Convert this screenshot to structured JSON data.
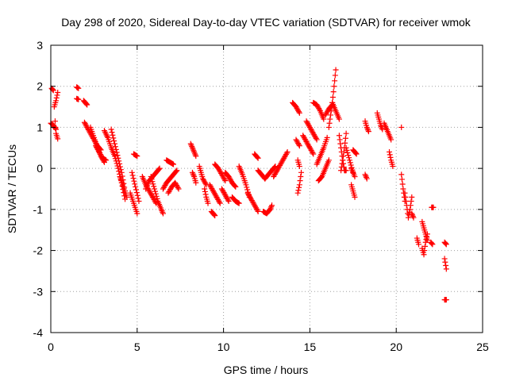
{
  "chart_data": {
    "type": "scatter",
    "title": "Day 298 of 2020, Sidereal Day-to-day VTEC variation (SDTVAR) for receiver wmok",
    "xlabel": "GPS time / hours",
    "ylabel": "SDTVAR / TECUs",
    "xlim": [
      0,
      25
    ],
    "ylim": [
      -4,
      3
    ],
    "xticks": [
      "0",
      "5",
      "10",
      "15",
      "20",
      "25"
    ],
    "yticks": [
      "-4",
      "-3",
      "-2",
      "-1",
      "0",
      "1",
      "2",
      "3"
    ],
    "grid": true,
    "marker": "+",
    "marker_color": "#ff0000",
    "frame_color": "#000000",
    "grid_color": "#a0a0a0",
    "series": [
      {
        "name": "wmok",
        "tracks": [
          {
            "x": [
              0.0,
              0.15,
              0.3
            ],
            "y": [
              1.1,
              1.05,
              0.95
            ]
          },
          {
            "x": [
              0.05,
              0.15
            ],
            "y": [
              1.95,
              1.9
            ]
          },
          {
            "x": [
              0.2,
              0.3,
              0.4
            ],
            "y": [
              1.5,
              1.65,
              1.85
            ]
          },
          {
            "x": [
              0.25,
              0.3,
              0.4
            ],
            "y": [
              1.15,
              0.85,
              0.72
            ]
          },
          {
            "x": [
              1.5,
              1.6
            ],
            "y": [
              1.98,
              1.95
            ]
          },
          {
            "x": [
              1.5,
              1.6
            ],
            "y": [
              1.7,
              1.68
            ]
          },
          {
            "x": [
              1.9,
              2.0,
              2.1
            ],
            "y": [
              1.65,
              1.6,
              1.55
            ]
          },
          {
            "x": [
              1.95,
              2.1,
              2.3,
              2.5,
              2.7,
              2.9
            ],
            "y": [
              1.12,
              1.0,
              0.85,
              0.7,
              0.55,
              0.45
            ]
          },
          {
            "x": [
              2.3,
              2.5,
              2.7,
              2.9,
              3.1
            ],
            "y": [
              1.0,
              0.75,
              0.5,
              0.3,
              0.15
            ]
          },
          {
            "x": [
              2.6,
              2.8,
              3.0,
              3.2
            ],
            "y": [
              0.55,
              0.4,
              0.25,
              0.2
            ]
          },
          {
            "x": [
              3.1,
              3.3,
              3.5,
              3.7,
              3.9,
              4.1,
              4.3
            ],
            "y": [
              0.92,
              0.75,
              0.5,
              0.3,
              0.0,
              -0.35,
              -0.75
            ]
          },
          {
            "x": [
              3.5,
              3.7,
              3.9,
              4.1,
              4.3
            ],
            "y": [
              0.95,
              0.6,
              0.25,
              -0.1,
              -0.55
            ]
          },
          {
            "x": [
              4.0,
              4.2,
              4.4
            ],
            "y": [
              -0.2,
              -0.45,
              -0.7
            ]
          },
          {
            "x": [
              4.6,
              4.8,
              5.0
            ],
            "y": [
              -0.6,
              -0.85,
              -1.1
            ]
          },
          {
            "x": [
              4.7,
              4.9,
              5.1
            ],
            "y": [
              -0.1,
              -0.45,
              -0.8
            ]
          },
          {
            "x": [
              4.8,
              5.0
            ],
            "y": [
              0.35,
              0.3
            ]
          },
          {
            "x": [
              5.3,
              5.5,
              5.7,
              5.9,
              6.1
            ],
            "y": [
              -0.2,
              -0.4,
              -0.55,
              -0.7,
              -0.85
            ]
          },
          {
            "x": [
              5.5,
              5.7,
              5.9,
              6.1,
              6.3
            ],
            "y": [
              -0.5,
              -0.3,
              -0.2,
              -0.1,
              0.0
            ]
          },
          {
            "x": [
              5.8,
              6.0,
              6.2,
              6.4,
              6.5
            ],
            "y": [
              -0.2,
              -0.5,
              -0.8,
              -1.0,
              -1.1
            ]
          },
          {
            "x": [
              6.5,
              6.7,
              6.9,
              7.1,
              7.3
            ],
            "y": [
              -0.5,
              -0.35,
              -0.25,
              -0.15,
              -0.05
            ]
          },
          {
            "x": [
              6.7,
              6.9,
              7.1
            ],
            "y": [
              0.2,
              0.15,
              0.1
            ]
          },
          {
            "x": [
              6.8,
              7.0,
              7.2,
              7.4
            ],
            "y": [
              -0.6,
              -0.45,
              -0.35,
              -0.5
            ]
          },
          {
            "x": [
              8.1,
              8.2,
              8.3,
              8.4
            ],
            "y": [
              0.6,
              0.5,
              0.4,
              0.3
            ]
          },
          {
            "x": [
              8.2,
              8.3,
              8.4
            ],
            "y": [
              -0.1,
              -0.2,
              -0.35
            ]
          },
          {
            "x": [
              8.6,
              8.7,
              8.8,
              9.0
            ],
            "y": [
              0.05,
              -0.1,
              -0.25,
              -0.4
            ]
          },
          {
            "x": [
              8.9,
              9.0,
              9.1
            ],
            "y": [
              -0.5,
              -0.7,
              -0.85
            ]
          },
          {
            "x": [
              9.3,
              9.4,
              9.5
            ],
            "y": [
              -1.05,
              -1.1,
              -1.15
            ]
          },
          {
            "x": [
              9.2,
              9.4,
              9.6,
              9.8
            ],
            "y": [
              -0.4,
              -0.55,
              -0.7,
              -0.85
            ]
          },
          {
            "x": [
              9.5,
              9.7,
              9.9,
              10.1
            ],
            "y": [
              0.1,
              0.0,
              -0.15,
              -0.3
            ]
          },
          {
            "x": [
              9.9,
              10.1,
              10.3
            ],
            "y": [
              -0.5,
              -0.65,
              -0.8
            ]
          },
          {
            "x": [
              10.1,
              10.3,
              10.5,
              10.7
            ],
            "y": [
              -0.1,
              -0.2,
              -0.35,
              -0.45
            ]
          },
          {
            "x": [
              10.5,
              10.7,
              10.9
            ],
            "y": [
              -0.7,
              -0.8,
              -0.85
            ]
          },
          {
            "x": [
              10.9,
              11.1,
              11.3,
              11.5
            ],
            "y": [
              0.05,
              -0.15,
              -0.4,
              -0.7
            ]
          },
          {
            "x": [
              11.4,
              11.6,
              11.8,
              12.0
            ],
            "y": [
              -0.6,
              -0.75,
              -0.9,
              -1.05
            ]
          },
          {
            "x": [
              11.8,
              12.0
            ],
            "y": [
              0.35,
              0.25
            ]
          },
          {
            "x": [
              12.0,
              12.2,
              12.4
            ],
            "y": [
              -0.05,
              -0.15,
              -0.25
            ]
          },
          {
            "x": [
              12.3,
              12.5,
              12.7,
              12.8
            ],
            "y": [
              -1.05,
              -1.1,
              -1.0,
              -0.9
            ]
          },
          {
            "x": [
              12.4,
              12.6,
              12.8,
              13.0
            ],
            "y": [
              -0.25,
              -0.15,
              -0.05,
              0.05
            ]
          },
          {
            "x": [
              12.9,
              13.1,
              13.3,
              13.5,
              13.7
            ],
            "y": [
              -0.2,
              -0.05,
              0.1,
              0.25,
              0.4
            ]
          },
          {
            "x": [
              14.0,
              14.2,
              14.4
            ],
            "y": [
              1.6,
              1.5,
              1.35
            ]
          },
          {
            "x": [
              14.2,
              14.4
            ],
            "y": [
              0.7,
              0.55
            ]
          },
          {
            "x": [
              14.3,
              14.4,
              14.5
            ],
            "y": [
              -0.6,
              -0.4,
              -0.1
            ]
          },
          {
            "x": [
              14.3,
              14.4
            ],
            "y": [
              0.2,
              0.05
            ]
          },
          {
            "x": [
              14.6,
              14.8,
              15.0,
              15.2
            ],
            "y": [
              0.8,
              0.65,
              0.5,
              0.35
            ]
          },
          {
            "x": [
              14.8,
              15.0,
              15.2,
              15.4
            ],
            "y": [
              1.15,
              1.0,
              0.85,
              0.7
            ]
          },
          {
            "x": [
              15.2,
              15.4,
              15.6,
              15.8
            ],
            "y": [
              1.6,
              1.55,
              1.4,
              1.2
            ]
          },
          {
            "x": [
              15.4,
              15.6,
              15.8,
              16.0
            ],
            "y": [
              0.1,
              0.3,
              0.5,
              0.75
            ]
          },
          {
            "x": [
              15.5,
              15.7,
              15.9,
              16.1
            ],
            "y": [
              -0.3,
              -0.2,
              0.0,
              0.2
            ]
          },
          {
            "x": [
              15.9,
              16.1,
              16.3
            ],
            "y": [
              1.3,
              1.45,
              1.55
            ]
          },
          {
            "x": [
              16.1,
              16.2,
              16.3,
              16.4,
              16.5
            ],
            "y": [
              1.0,
              1.3,
              1.6,
              2.0,
              2.4
            ]
          },
          {
            "x": [
              16.3,
              16.5,
              16.7
            ],
            "y": [
              1.6,
              1.4,
              1.2
            ]
          },
          {
            "x": [
              16.7,
              16.8,
              16.9,
              17.0,
              17.1
            ],
            "y": [
              0.8,
              0.5,
              0.2,
              -0.05,
              -0.05
            ]
          },
          {
            "x": [
              16.8,
              16.9,
              17.0,
              17.1
            ],
            "y": [
              -0.05,
              0.2,
              0.5,
              0.85
            ]
          },
          {
            "x": [
              17.1,
              17.3,
              17.5
            ],
            "y": [
              0.5,
              0.2,
              -0.1
            ]
          },
          {
            "x": [
              17.5,
              17.6,
              17.7
            ],
            "y": [
              0.45,
              0.4,
              0.35
            ]
          },
          {
            "x": [
              17.4,
              17.6
            ],
            "y": [
              0.0,
              -0.2
            ]
          },
          {
            "x": [
              17.4,
              17.5,
              17.6
            ],
            "y": [
              -0.4,
              -0.55,
              -0.7
            ]
          },
          {
            "x": [
              18.2,
              18.3,
              18.4
            ],
            "y": [
              1.15,
              1.0,
              0.9
            ]
          },
          {
            "x": [
              18.2,
              18.3
            ],
            "y": [
              -0.15,
              -0.25
            ]
          },
          {
            "x": [
              18.9,
              19.0,
              19.1,
              19.2
            ],
            "y": [
              1.35,
              1.2,
              1.05,
              0.95
            ]
          },
          {
            "x": [
              19.3,
              19.5,
              19.7
            ],
            "y": [
              1.1,
              0.9,
              0.7
            ]
          },
          {
            "x": [
              19.6,
              19.7,
              19.8
            ],
            "y": [
              0.4,
              0.2,
              0.05
            ]
          },
          {
            "x": [
              20.3
            ],
            "y": [
              1.0
            ]
          },
          {
            "x": [
              20.3,
              20.4,
              20.5
            ],
            "y": [
              -0.15,
              -0.5,
              -0.8
            ]
          },
          {
            "x": [
              20.5,
              20.6,
              20.7,
              20.8,
              20.9
            ],
            "y": [
              -0.6,
              -0.9,
              -1.2,
              -1.0,
              -0.7
            ]
          },
          {
            "x": [
              20.9,
              21.0
            ],
            "y": [
              -1.1,
              -1.2
            ]
          },
          {
            "x": [
              21.2,
              21.3
            ],
            "y": [
              -1.7,
              -1.85
            ]
          },
          {
            "x": [
              21.5,
              21.6,
              21.7,
              21.8
            ],
            "y": [
              -1.95,
              -2.1,
              -1.8,
              -1.6
            ]
          },
          {
            "x": [
              21.5,
              21.6,
              21.7,
              21.8
            ],
            "y": [
              -1.3,
              -1.45,
              -1.6,
              -1.75
            ]
          },
          {
            "x": [
              22.0,
              22.1
            ],
            "y": [
              -1.8,
              -1.85
            ]
          },
          {
            "x": [
              22.05,
              22.15
            ],
            "y": [
              -0.95,
              -0.95
            ]
          },
          {
            "x": [
              22.8,
              22.9
            ],
            "y": [
              -1.8,
              -1.85
            ]
          },
          {
            "x": [
              22.8,
              22.9
            ],
            "y": [
              -2.2,
              -2.45
            ]
          },
          {
            "x": [
              22.8,
              22.9
            ],
            "y": [
              -3.2,
              -3.2
            ]
          }
        ]
      }
    ]
  }
}
